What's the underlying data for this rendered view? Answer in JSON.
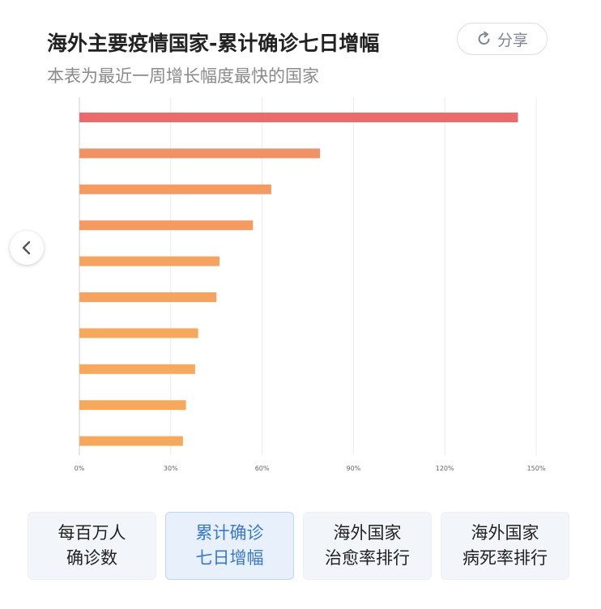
{
  "header": {
    "title": "海外主要疫情国家-累计确诊七日增幅",
    "subtitle": "本表为最近一周增长幅度最快的国家",
    "share_label": "分享"
  },
  "chart_data": {
    "type": "bar",
    "orientation": "horizontal",
    "categories": [
      "",
      "",
      "",
      "",
      "",
      "",
      "",
      "",
      "",
      ""
    ],
    "values": [
      144,
      79,
      63,
      57,
      46,
      45,
      39,
      38,
      35,
      34
    ],
    "colors": [
      "#e96b6b",
      "#f09166",
      "#f39b63",
      "#f39b63",
      "#f5a35f",
      "#f5a35f",
      "#f6a95d",
      "#f6a95d",
      "#f6a95d",
      "#f6a95d"
    ],
    "x_ticks": [
      "0%",
      "30%",
      "60%",
      "90%",
      "120%",
      "150%"
    ],
    "xlim": [
      0,
      150
    ],
    "grid": true
  },
  "tabs": [
    {
      "line1": "每百万人",
      "line2": "确诊数",
      "active": false
    },
    {
      "line1": "累计确诊",
      "line2": "七日增幅",
      "active": true
    },
    {
      "line1": "海外国家",
      "line2": "治愈率排行",
      "active": false
    },
    {
      "line1": "海外国家",
      "line2": "病死率排行",
      "active": false
    }
  ],
  "icons": {
    "share": "share-icon",
    "prev": "chevron-left-icon"
  },
  "colors": {
    "accent": "#3a78c8",
    "title": "#222222",
    "subtitle": "#8a8a8a"
  }
}
